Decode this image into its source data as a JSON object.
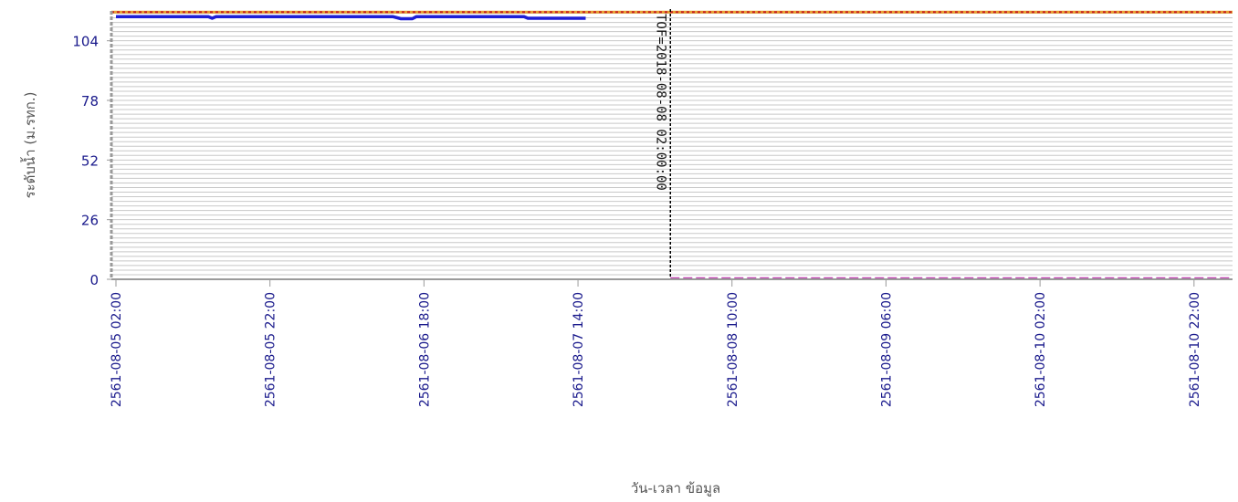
{
  "chart_data": {
    "type": "line",
    "title": "",
    "xlabel": "วัน-เวลา ข้อมูล",
    "ylabel": "ระดับน้ำ (ม.รทก.)",
    "ylim": [
      0,
      117
    ],
    "xlim": [
      "2561-08-05 02:00",
      "2561-08-11 03:00"
    ],
    "yticks": [
      0,
      26,
      52,
      78,
      104
    ],
    "xticks": [
      "2561-08-05 02:00",
      "2561-08-05 22:00",
      "2561-08-06 18:00",
      "2561-08-07 14:00",
      "2561-08-08 10:00",
      "2561-08-09 06:00",
      "2561-08-10 02:00",
      "2561-08-10 22:00"
    ],
    "grid": true,
    "series": [
      {
        "kind": "measured",
        "color": "#1f1fd6",
        "points": [
          [
            "2561-08-05 02:00",
            114.5
          ],
          [
            "2561-08-05 14:00",
            114.5
          ],
          [
            "2561-08-05 14:30",
            113.8
          ],
          [
            "2561-08-05 15:00",
            114.5
          ],
          [
            "2561-08-06 14:00",
            114.5
          ],
          [
            "2561-08-06 15:00",
            113.6
          ],
          [
            "2561-08-06 16:30",
            113.6
          ],
          [
            "2561-08-06 17:00",
            114.5
          ],
          [
            "2561-08-07 07:00",
            114.5
          ],
          [
            "2561-08-07 07:30",
            113.8
          ],
          [
            "2561-08-07 15:00",
            113.8
          ]
        ]
      }
    ],
    "reference_lines": [
      {
        "kind": "bank-level",
        "value": 116.5,
        "color": "#e8a030",
        "dash_color": "#c82020",
        "from": "2561-08-05 02:00",
        "to": "2561-08-11 03:00"
      },
      {
        "kind": "bed-level",
        "value": 0,
        "color": "#c040b0",
        "from": "2561-08-08 02:00",
        "to": "2561-08-11 03:00"
      }
    ],
    "vertical_marker": {
      "x": "2561-08-08 02:00",
      "label": "TOF=2018-08-08 02:00:00",
      "color": "#000000"
    }
  }
}
